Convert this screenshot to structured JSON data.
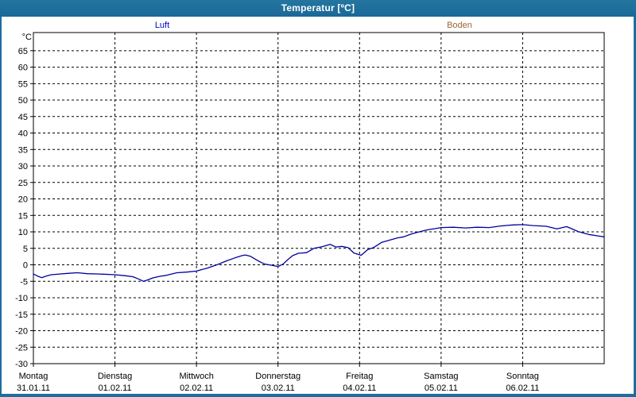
{
  "window": {
    "title": "Temperatur [ºC]",
    "titlebar_color": "#1d6d9f",
    "border_color": "#1d6d9f"
  },
  "legend": {
    "items": [
      {
        "label": "Luft",
        "color": "#0000cd"
      },
      {
        "label": "Boden",
        "color": "#996633"
      }
    ]
  },
  "chart_data": {
    "type": "line",
    "title": "Temperatur [ºC]",
    "y_axis": {
      "label": "°C",
      "min": -30,
      "max": 65,
      "tick_step": 5,
      "plot_top_value": 70.5
    },
    "x_axis": {
      "days_span": 7,
      "ticks": [
        {
          "name": "Montag",
          "date": "31.01.11"
        },
        {
          "name": "Dienstag",
          "date": "01.02.11"
        },
        {
          "name": "Mittwoch",
          "date": "02.02.11"
        },
        {
          "name": "Donnerstag",
          "date": "03.02.11"
        },
        {
          "name": "Freitag",
          "date": "04.02.11"
        },
        {
          "name": "Samstag",
          "date": "05.02.11"
        },
        {
          "name": "Sonntag",
          "date": "06.02.11"
        }
      ]
    },
    "grid": {
      "style": "dashed",
      "color": "#000000"
    },
    "series": [
      {
        "name": "Luft",
        "color": "#0000a0",
        "x": [
          0,
          0.05,
          0.1,
          0.16,
          0.22,
          0.32,
          0.42,
          0.54,
          0.66,
          0.81,
          1.0,
          1.12,
          1.22,
          1.3,
          1.35,
          1.4,
          1.46,
          1.55,
          1.63,
          1.76,
          1.88,
          2.0,
          2.13,
          2.25,
          2.37,
          2.47,
          2.56,
          2.6,
          2.66,
          2.73,
          2.78,
          2.84,
          2.91,
          3.0,
          3.06,
          3.13,
          3.18,
          3.25,
          3.35,
          3.44,
          3.54,
          3.64,
          3.71,
          3.78,
          3.86,
          3.93,
          4.02,
          4.1,
          4.17,
          4.27,
          4.37,
          4.47,
          4.54,
          4.63,
          4.73,
          4.83,
          4.93,
          5.0,
          5.15,
          5.3,
          5.44,
          5.59,
          5.73,
          5.88,
          6.0,
          6.13,
          6.29,
          6.42,
          6.54,
          6.68,
          6.81,
          6.94,
          7.0
        ],
        "y": [
          -2.8,
          -3.4,
          -3.9,
          -3.4,
          -3.0,
          -2.8,
          -2.6,
          -2.4,
          -2.7,
          -2.8,
          -3.0,
          -3.3,
          -3.6,
          -4.4,
          -5.0,
          -4.6,
          -4.0,
          -3.5,
          -3.2,
          -2.4,
          -2.2,
          -1.9,
          -1.0,
          0.0,
          1.2,
          2.1,
          2.8,
          3.0,
          2.6,
          1.6,
          0.9,
          0.2,
          -0.1,
          -0.5,
          0.2,
          1.8,
          2.8,
          3.5,
          3.7,
          5.0,
          5.5,
          6.2,
          5.4,
          5.6,
          5.2,
          3.6,
          2.9,
          4.6,
          5.2,
          6.8,
          7.5,
          8.2,
          8.5,
          9.3,
          10.0,
          10.6,
          11.0,
          11.3,
          11.4,
          11.2,
          11.4,
          11.3,
          11.8,
          12.1,
          12.2,
          11.9,
          11.7,
          10.9,
          11.6,
          10.1,
          9.2,
          8.7,
          8.5
        ]
      },
      {
        "name": "Boden",
        "color": "#996633",
        "x": [],
        "y": []
      }
    ]
  }
}
